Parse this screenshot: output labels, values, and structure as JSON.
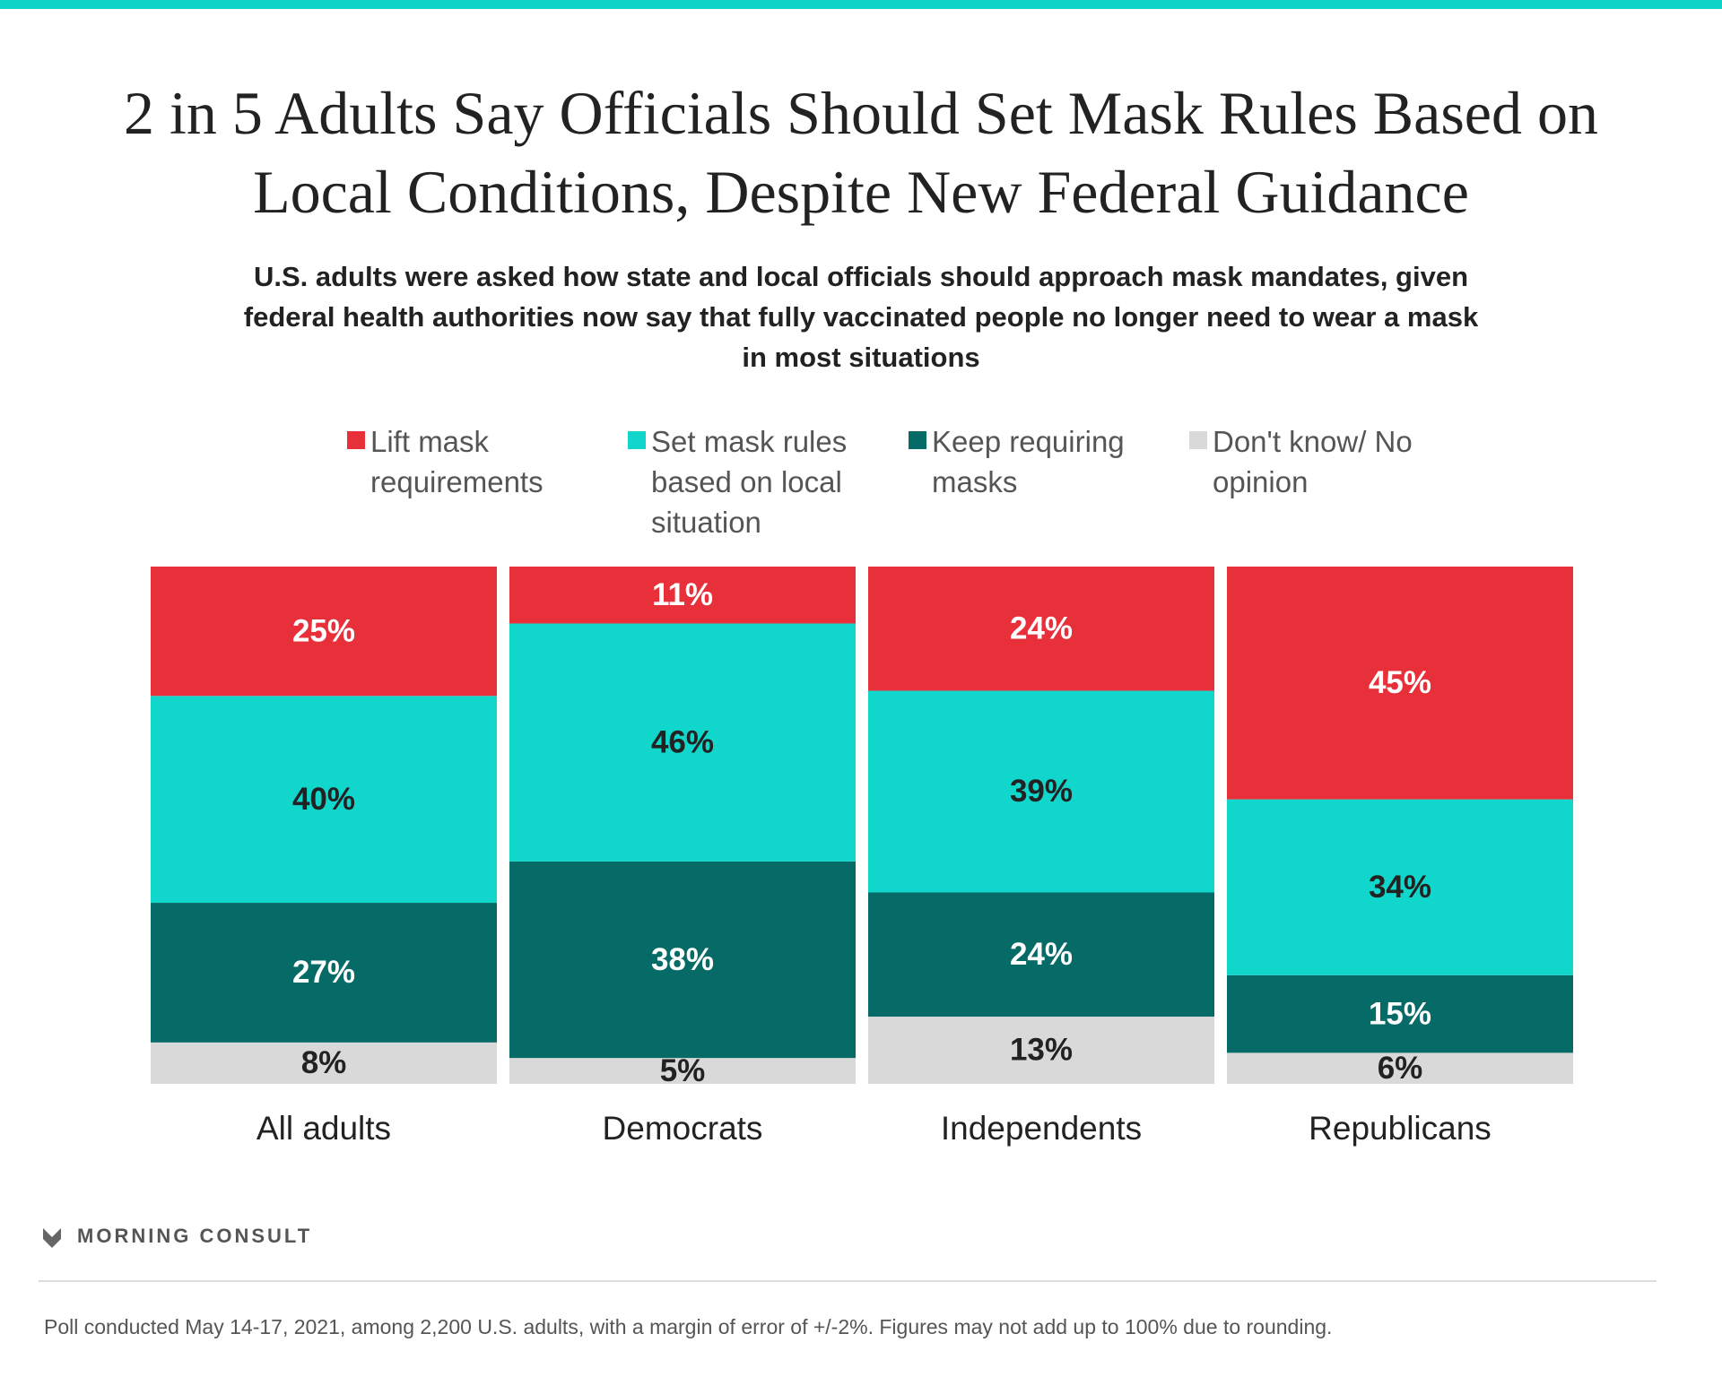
{
  "chart_data": {
    "type": "stacked_bar",
    "title": "2 in 5 Adults Say Officials Should Set Mask Rules Based on Local Conditions, Despite New Federal Guidance",
    "subtitle": "U.S. adults were asked how state and local officials should approach mask mandates, given federal health authorities now say that fully vaccinated people no longer need to wear a mask in most situations",
    "categories": [
      "All adults",
      "Democrats",
      "Independents",
      "Republicans"
    ],
    "series": [
      {
        "name": "Lift mask requirements",
        "color": "#e8303a",
        "values": [
          25,
          11,
          24,
          45
        ],
        "value_labels": [
          "25%",
          "11%",
          "24%",
          "45%"
        ]
      },
      {
        "name": "Set mask rules based on local situation",
        "color": "#10d6cb",
        "values": [
          40,
          46,
          39,
          34
        ],
        "value_labels": [
          "40%",
          "46%",
          "39%",
          "34%"
        ]
      },
      {
        "name": "Keep requiring masks",
        "color": "#066b67",
        "values": [
          27,
          38,
          24,
          15
        ],
        "value_labels": [
          "27%",
          "38%",
          "24%",
          "15%"
        ]
      },
      {
        "name": "Don't know/ No opinion",
        "color": "#d9d9d9",
        "values": [
          8,
          5,
          13,
          6
        ],
        "value_labels": [
          "8%",
          "5%",
          "13%",
          "6%"
        ]
      }
    ],
    "ylim": [
      0,
      100
    ],
    "source": "MORNING CONSULT",
    "note": "Poll conducted May 14-17, 2021, among 2,200 U.S. adults, with a margin of error of +/-2%. Figures may not add up to 100% due to rounding."
  }
}
